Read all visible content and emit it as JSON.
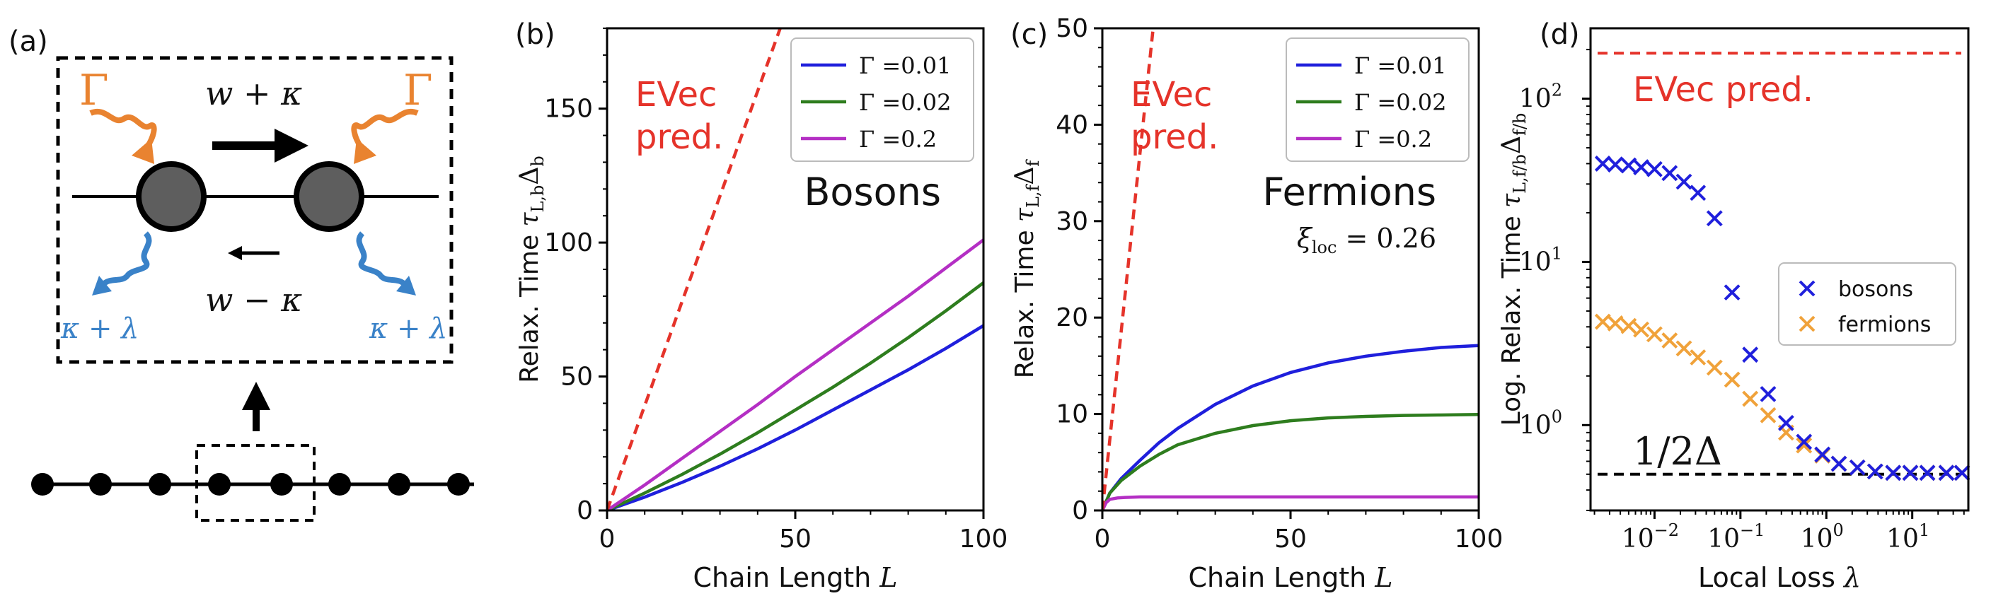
{
  "colors": {
    "blue": "#1f1fdc",
    "green": "#2e7d1e",
    "purple": "#b42fc4",
    "red": "#e5332a",
    "orange": "#e98330",
    "lightblue": "#3a82c8",
    "orange_x": "#f0a23a",
    "black": "#000000"
  },
  "panel_a": {
    "label": "(a)",
    "gamma_left": "Γ",
    "gamma_right": "Γ",
    "hop_right": "w + κ",
    "hop_left": "w − κ",
    "loss_left": "κ + λ",
    "loss_right": "κ + λ"
  },
  "chart_data": [
    {
      "panel": "(b)",
      "type": "line",
      "ylabel": "Relax. Time τL,bΔb",
      "ylabel_main": "Relax. Time ",
      "ylabel_sym": "τ",
      "ylabel_sub1": "L,b",
      "ylabel_mid": "Δ",
      "ylabel_sub2": "b",
      "xlabel": "Chain Length L",
      "xlabel_main": "Chain Length ",
      "xlabel_sym": "L",
      "xlim": [
        0,
        100
      ],
      "ylim": [
        0,
        180
      ],
      "xticks": [
        0,
        50,
        100
      ],
      "yticks": [
        0,
        50,
        100,
        150
      ],
      "annotation": "Bosons",
      "evec": {
        "label_line1": "EVec",
        "label_line2": "pred.",
        "x": [
          0,
          46
        ],
        "y": [
          0,
          180
        ]
      },
      "legend_position": "top-right",
      "series": [
        {
          "name": "Γ =0.01",
          "legend": "Γ =0.01",
          "color_key": "blue",
          "x": [
            0,
            10,
            20,
            30,
            40,
            50,
            60,
            70,
            80,
            90,
            100
          ],
          "y": [
            0,
            5,
            10.5,
            16.5,
            23,
            30,
            37.5,
            45,
            52.5,
            60.5,
            69
          ]
        },
        {
          "name": "Γ =0.02",
          "legend": "Γ =0.02",
          "color_key": "green",
          "x": [
            0,
            10,
            20,
            30,
            40,
            50,
            60,
            70,
            80,
            90,
            100
          ],
          "y": [
            0,
            6.5,
            13.5,
            21,
            29,
            37.5,
            46,
            55,
            64.5,
            74.5,
            85
          ]
        },
        {
          "name": "Γ =0.2",
          "legend": "Γ =0.2",
          "color_key": "purple",
          "x": [
            0,
            10,
            20,
            30,
            40,
            50,
            60,
            70,
            80,
            90,
            100
          ],
          "y": [
            0,
            9.5,
            19.5,
            29.5,
            39.5,
            50,
            60,
            70,
            80,
            90.5,
            101
          ]
        }
      ]
    },
    {
      "panel": "(c)",
      "type": "line",
      "ylabel": "Relax. Time τL,fΔf",
      "ylabel_main": "Relax. Time ",
      "ylabel_sym": "τ",
      "ylabel_sub1": "L,f",
      "ylabel_mid": "Δ",
      "ylabel_sub2": "f",
      "xlabel": "Chain Length L",
      "xlabel_main": "Chain Length ",
      "xlabel_sym": "L",
      "xlim": [
        0,
        100
      ],
      "ylim": [
        0,
        50
      ],
      "xticks": [
        0,
        50,
        100
      ],
      "yticks": [
        0,
        10,
        20,
        30,
        40,
        50
      ],
      "annotation": "Fermions",
      "annotation2": "ξloc = 0.26",
      "annotation2_sym": "ξ",
      "annotation2_sub": "loc",
      "annotation2_rest": " = 0.26",
      "evec": {
        "label_line1": "EVec",
        "label_line2": "pred.",
        "x": [
          0,
          13.5
        ],
        "y": [
          0,
          50
        ]
      },
      "legend_position": "top-right",
      "series": [
        {
          "name": "Γ =0.01",
          "legend": "Γ =0.01",
          "color_key": "blue",
          "x": [
            0,
            2,
            5,
            10,
            15,
            20,
            30,
            40,
            50,
            60,
            70,
            80,
            90,
            100
          ],
          "y": [
            0,
            1.8,
            3.3,
            5.2,
            7,
            8.5,
            11,
            12.9,
            14.3,
            15.3,
            16,
            16.5,
            16.9,
            17.1
          ]
        },
        {
          "name": "Γ =0.02",
          "legend": "Γ =0.02",
          "color_key": "green",
          "x": [
            0,
            2,
            5,
            10,
            15,
            20,
            30,
            40,
            50,
            60,
            70,
            80,
            90,
            100
          ],
          "y": [
            0,
            1.8,
            3.1,
            4.6,
            5.8,
            6.8,
            8,
            8.8,
            9.3,
            9.6,
            9.75,
            9.85,
            9.9,
            9.95
          ]
        },
        {
          "name": "Γ =0.2",
          "legend": "Γ =0.2",
          "color_key": "purple",
          "x": [
            0,
            1,
            2,
            4,
            6,
            10,
            20,
            50,
            100
          ],
          "y": [
            0,
            0.8,
            1.15,
            1.3,
            1.35,
            1.4,
            1.4,
            1.4,
            1.4
          ]
        }
      ]
    },
    {
      "panel": "(d)",
      "type": "scatter",
      "ylabel": "Log. Relax. Time τL,f/bΔf/b",
      "ylabel_main": "Log. Relax. Time ",
      "ylabel_sym": "τ",
      "ylabel_sub1": "L,f/b",
      "ylabel_mid": "Δ",
      "ylabel_sub2": "f/b",
      "xlabel": "Local Loss λ",
      "xlabel_main": "Local Loss ",
      "xlabel_sym": "λ",
      "xscale": "log",
      "yscale": "log",
      "xlim": [
        0.0018,
        45
      ],
      "ylim": [
        0.3,
        270
      ],
      "xticks": [
        0.01,
        0.1,
        1,
        10
      ],
      "xtick_labels": [
        [
          "10",
          "−2"
        ],
        [
          "10",
          "−1"
        ],
        [
          "10",
          "0"
        ],
        [
          "10",
          "1"
        ]
      ],
      "yticks": [
        1,
        10,
        100
      ],
      "ytick_labels": [
        [
          "10",
          "0"
        ],
        [
          "10",
          "1"
        ],
        [
          "10",
          "2"
        ]
      ],
      "evec_label": "EVec pred.",
      "evec_value": 190,
      "half_gap_label": "1/2Δ",
      "half_gap_value": 0.5,
      "legend_position": "center-right",
      "series": [
        {
          "name": "bosons",
          "legend": "bosons",
          "color_key": "blue",
          "x": [
            0.0025,
            0.0035,
            0.005,
            0.007,
            0.01,
            0.015,
            0.022,
            0.032,
            0.05,
            0.08,
            0.13,
            0.21,
            0.34,
            0.55,
            0.9,
            1.4,
            2.3,
            3.7,
            6,
            9.5,
            15,
            25,
            38
          ],
          "y": [
            40,
            39.5,
            39,
            38,
            37,
            35,
            31,
            26.5,
            18.5,
            6.5,
            2.7,
            1.55,
            1.03,
            0.79,
            0.66,
            0.58,
            0.55,
            0.52,
            0.51,
            0.51,
            0.51,
            0.51,
            0.51
          ]
        },
        {
          "name": "fermions",
          "legend": "fermions",
          "color_key": "orange_x",
          "x": [
            0.0025,
            0.0035,
            0.005,
            0.007,
            0.01,
            0.015,
            0.022,
            0.032,
            0.05,
            0.08,
            0.13,
            0.21,
            0.34,
            0.55,
            0.9,
            1.4,
            2.3,
            3.7,
            6,
            9.5,
            15,
            25,
            38
          ],
          "y": [
            4.3,
            4.2,
            4.05,
            3.85,
            3.6,
            3.3,
            2.95,
            2.6,
            2.25,
            1.9,
            1.45,
            1.15,
            0.9,
            0.75,
            0.65,
            0.58,
            0.55,
            0.52,
            0.51,
            0.51,
            0.51,
            0.51,
            0.51
          ]
        }
      ]
    }
  ]
}
